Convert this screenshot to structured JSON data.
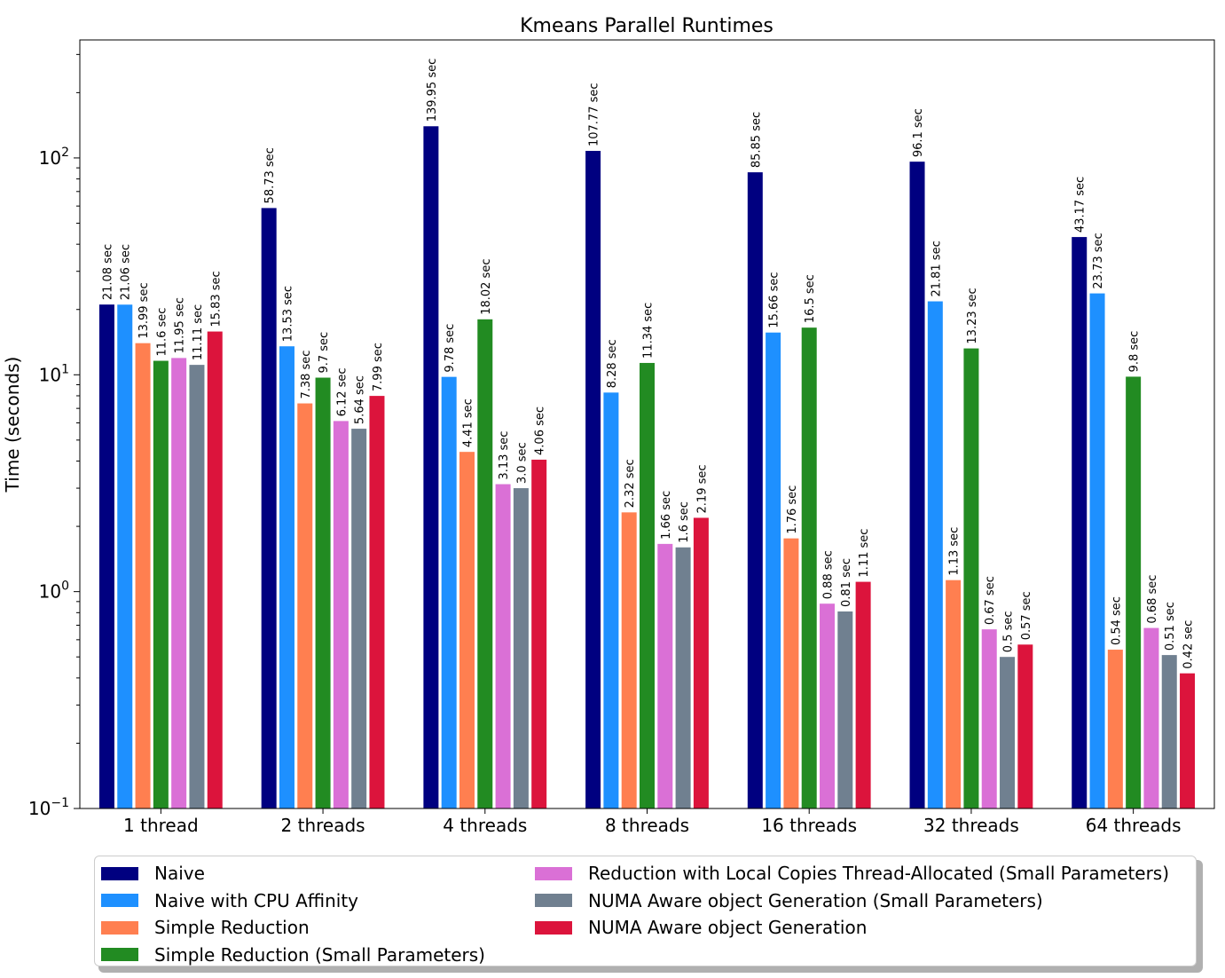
{
  "chart_data": {
    "type": "bar",
    "title": "Kmeans Parallel Runtimes",
    "ylabel": "Time (seconds)",
    "xlabel": "",
    "yscale": "log",
    "ylim": [
      0.1,
      350
    ],
    "ytick_labels": [
      {
        "base": "10",
        "exp": "−1"
      },
      {
        "base": "10",
        "exp": "0"
      },
      {
        "base": "10",
        "exp": "1"
      },
      {
        "base": "10",
        "exp": "2"
      }
    ],
    "categories": [
      "1 thread",
      "2 threads",
      "4 threads",
      "8 threads",
      "16 threads",
      "32 threads",
      "64 threads"
    ],
    "value_suffix": " sec",
    "series": [
      {
        "name": "Naive",
        "color": "#000080",
        "values": [
          21.08,
          58.73,
          139.95,
          107.77,
          85.85,
          96.1,
          43.17
        ],
        "labels": [
          "21.08",
          "58.73",
          "139.95",
          "107.77",
          "85.85",
          "96.1",
          "43.17"
        ]
      },
      {
        "name": "Naive with CPU Affinity",
        "color": "#1e90ff",
        "values": [
          21.06,
          13.53,
          9.78,
          8.28,
          15.66,
          21.81,
          23.73
        ],
        "labels": [
          "21.06",
          "13.53",
          "9.78",
          "8.28",
          "15.66",
          "21.81",
          "23.73"
        ]
      },
      {
        "name": "Simple Reduction",
        "color": "#ff7f50",
        "values": [
          13.99,
          7.38,
          4.41,
          2.32,
          1.76,
          1.13,
          0.54
        ],
        "labels": [
          "13.99",
          "7.38",
          "4.41",
          "2.32",
          "1.76",
          "1.13",
          "0.54"
        ]
      },
      {
        "name": "Simple Reduction (Small Parameters)",
        "color": "#228b22",
        "values": [
          11.6,
          9.7,
          18.02,
          11.34,
          16.5,
          13.23,
          9.8
        ],
        "labels": [
          "11.6",
          "9.7",
          "18.02",
          "11.34",
          "16.5",
          "13.23",
          "9.8"
        ]
      },
      {
        "name": "Reduction with Local Copies Thread-Allocated (Small Parameters)",
        "color": "#da70d6",
        "values": [
          11.95,
          6.12,
          3.13,
          1.66,
          0.88,
          0.67,
          0.68
        ],
        "labels": [
          "11.95",
          "6.12",
          "3.13",
          "1.66",
          "0.88",
          "0.67",
          "0.68"
        ]
      },
      {
        "name": "NUMA Aware object Generation (Small Parameters)",
        "color": "#708090",
        "values": [
          11.11,
          5.64,
          3.0,
          1.6,
          0.81,
          0.5,
          0.51
        ],
        "labels": [
          "11.11",
          "5.64",
          "3.0",
          "1.6",
          "0.81",
          "0.5",
          "0.51"
        ]
      },
      {
        "name": "NUMA Aware object Generation",
        "color": "#dc143c",
        "values": [
          15.83,
          7.99,
          4.06,
          2.19,
          1.11,
          0.57,
          0.42
        ],
        "labels": [
          "15.83",
          "7.99",
          "4.06",
          "2.19",
          "1.11",
          "0.57",
          "0.42"
        ]
      }
    ],
    "legend": {
      "placement": "bottom",
      "columns": 2
    }
  }
}
